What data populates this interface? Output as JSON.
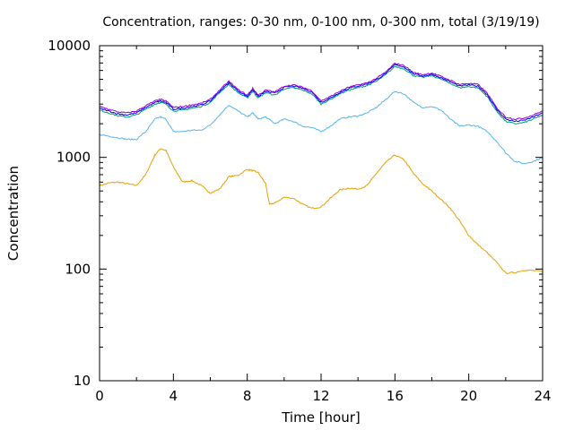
{
  "chart_data": {
    "type": "line",
    "title": "Concentration, ranges: 0-30 nm, 0-100 nm, 0-300 nm, total (3/19/19)",
    "xlabel": "Time [hour]",
    "ylabel": "Concentration",
    "xlim": [
      0,
      24
    ],
    "ylim": [
      10,
      10000
    ],
    "yscale": "log",
    "grid": false,
    "x_ticks": [
      0,
      4,
      8,
      12,
      16,
      20,
      24
    ],
    "x_tick_labels": [
      "0",
      "4",
      "8",
      "12",
      "16",
      "20",
      "24"
    ],
    "y_ticks": [
      10,
      100,
      1000,
      10000
    ],
    "y_tick_labels": [
      "10",
      "100",
      "1000",
      "10000"
    ],
    "colors": {
      "range_0_30": "#e69f00",
      "range_0_100": "#56b4e9",
      "range_0_300": "#009e73",
      "total": "#9400d3",
      "total_secondary": "#0000ff"
    },
    "series": [
      {
        "key": "range_0_30",
        "x": [
          0,
          0.5,
          1,
          1.5,
          2,
          2.5,
          3,
          3.3,
          3.6,
          4,
          4.5,
          5,
          5.5,
          6,
          6.5,
          7,
          7.5,
          8,
          8.3,
          8.6,
          9,
          9.2,
          9.5,
          10,
          10.5,
          11,
          11.5,
          12,
          12.5,
          13,
          13.5,
          14,
          14.5,
          15,
          15.5,
          16,
          16.5,
          17,
          17.5,
          18,
          18.5,
          19,
          19.5,
          20,
          20.5,
          21,
          21.5,
          22,
          22.5,
          23,
          23.5,
          24
        ],
        "y": [
          560,
          590,
          600,
          580,
          560,
          700,
          1050,
          1200,
          1150,
          820,
          600,
          620,
          560,
          480,
          520,
          670,
          690,
          780,
          760,
          730,
          580,
          380,
          390,
          440,
          430,
          380,
          350,
          360,
          430,
          510,
          530,
          520,
          560,
          720,
          900,
          1050,
          950,
          720,
          580,
          500,
          420,
          350,
          270,
          200,
          165,
          140,
          115,
          92,
          93,
          98,
          97,
          95
        ]
      },
      {
        "key": "range_0_100",
        "x": [
          0,
          0.5,
          1,
          1.5,
          2,
          2.5,
          3,
          3.3,
          3.6,
          4,
          4.5,
          5,
          5.5,
          6,
          6.5,
          7,
          7.5,
          8,
          8.3,
          8.6,
          9,
          9.5,
          10,
          10.5,
          11,
          11.5,
          12,
          12.5,
          13,
          13.5,
          14,
          14.5,
          15,
          15.5,
          16,
          16.5,
          17,
          17.5,
          18,
          18.5,
          19,
          19.5,
          20,
          20.5,
          21,
          21.5,
          22,
          22.5,
          23,
          23.5,
          24
        ],
        "y": [
          1600,
          1550,
          1500,
          1450,
          1450,
          1700,
          2200,
          2300,
          2200,
          1700,
          1700,
          1750,
          1750,
          1950,
          2400,
          2950,
          2600,
          2300,
          2500,
          2200,
          2300,
          2000,
          2200,
          2100,
          1900,
          1850,
          1700,
          1900,
          2200,
          2300,
          2350,
          2500,
          2800,
          3300,
          3900,
          3700,
          3100,
          2800,
          2850,
          2650,
          2200,
          1900,
          1950,
          1900,
          1700,
          1400,
          1100,
          920,
          880,
          920,
          1000
        ]
      },
      {
        "key": "range_0_300",
        "x": [
          0,
          0.5,
          1,
          1.5,
          2,
          2.5,
          3,
          3.3,
          3.6,
          4,
          4.5,
          5,
          5.5,
          6,
          6.5,
          7,
          7.5,
          8,
          8.3,
          8.6,
          9,
          9.5,
          10,
          10.5,
          11,
          11.5,
          12,
          12.5,
          13,
          13.5,
          14,
          14.5,
          15,
          15.5,
          16,
          16.5,
          17,
          17.5,
          18,
          18.5,
          19,
          19.5,
          20,
          20.5,
          21,
          21.5,
          22,
          22.5,
          23,
          23.5,
          24
        ],
        "y": [
          2650,
          2500,
          2350,
          2300,
          2400,
          2700,
          3000,
          3100,
          3000,
          2600,
          2650,
          2750,
          2850,
          3100,
          3800,
          4500,
          3800,
          3400,
          3900,
          3400,
          3800,
          3600,
          4100,
          4200,
          4000,
          3700,
          3000,
          3300,
          3700,
          4000,
          4200,
          4400,
          4800,
          5500,
          6500,
          6200,
          5400,
          5200,
          5400,
          5000,
          4600,
          4200,
          4300,
          4200,
          3500,
          2600,
          2100,
          2000,
          2050,
          2200,
          2400
        ]
      },
      {
        "key": "total_secondary",
        "x": [
          0,
          0.5,
          1,
          1.5,
          2,
          2.5,
          3,
          3.3,
          3.6,
          4,
          4.5,
          5,
          5.5,
          6,
          6.5,
          7,
          7.5,
          8,
          8.3,
          8.6,
          9,
          9.5,
          10,
          10.5,
          11,
          11.5,
          12,
          12.5,
          13,
          13.5,
          14,
          14.5,
          15,
          15.5,
          16,
          16.5,
          17,
          17.5,
          18,
          18.5,
          19,
          19.5,
          20,
          20.5,
          21,
          21.5,
          22,
          22.5,
          23,
          23.5,
          24
        ],
        "y": [
          2750,
          2600,
          2450,
          2400,
          2500,
          2800,
          3100,
          3200,
          3100,
          2700,
          2750,
          2850,
          2950,
          3200,
          3900,
          4650,
          3950,
          3500,
          4050,
          3500,
          3900,
          3750,
          4250,
          4350,
          4150,
          3850,
          3100,
          3400,
          3800,
          4150,
          4350,
          4550,
          4950,
          5650,
          6750,
          6450,
          5600,
          5350,
          5550,
          5150,
          4750,
          4350,
          4450,
          4350,
          3650,
          2700,
          2200,
          2100,
          2150,
          2300,
          2500
        ]
      },
      {
        "key": "total",
        "x": [
          0,
          0.5,
          1,
          1.5,
          2,
          2.5,
          3,
          3.3,
          3.6,
          4,
          4.5,
          5,
          5.5,
          6,
          6.5,
          7,
          7.5,
          8,
          8.3,
          8.6,
          9,
          9.5,
          10,
          10.5,
          11,
          11.5,
          12,
          12.5,
          13,
          13.5,
          14,
          14.5,
          15,
          15.5,
          16,
          16.5,
          17,
          17.5,
          18,
          18.5,
          19,
          19.5,
          20,
          20.5,
          21,
          21.5,
          22,
          22.5,
          23,
          23.5,
          24
        ],
        "y": [
          2850,
          2700,
          2550,
          2500,
          2600,
          2900,
          3200,
          3300,
          3200,
          2800,
          2850,
          2950,
          3050,
          3300,
          4000,
          4800,
          4050,
          3600,
          4150,
          3600,
          4000,
          3850,
          4350,
          4450,
          4250,
          3950,
          3200,
          3500,
          3900,
          4250,
          4450,
          4650,
          5100,
          5800,
          6950,
          6650,
          5750,
          5500,
          5700,
          5300,
          4900,
          4500,
          4600,
          4500,
          3750,
          2800,
          2300,
          2200,
          2250,
          2400,
          2600
        ]
      }
    ]
  }
}
